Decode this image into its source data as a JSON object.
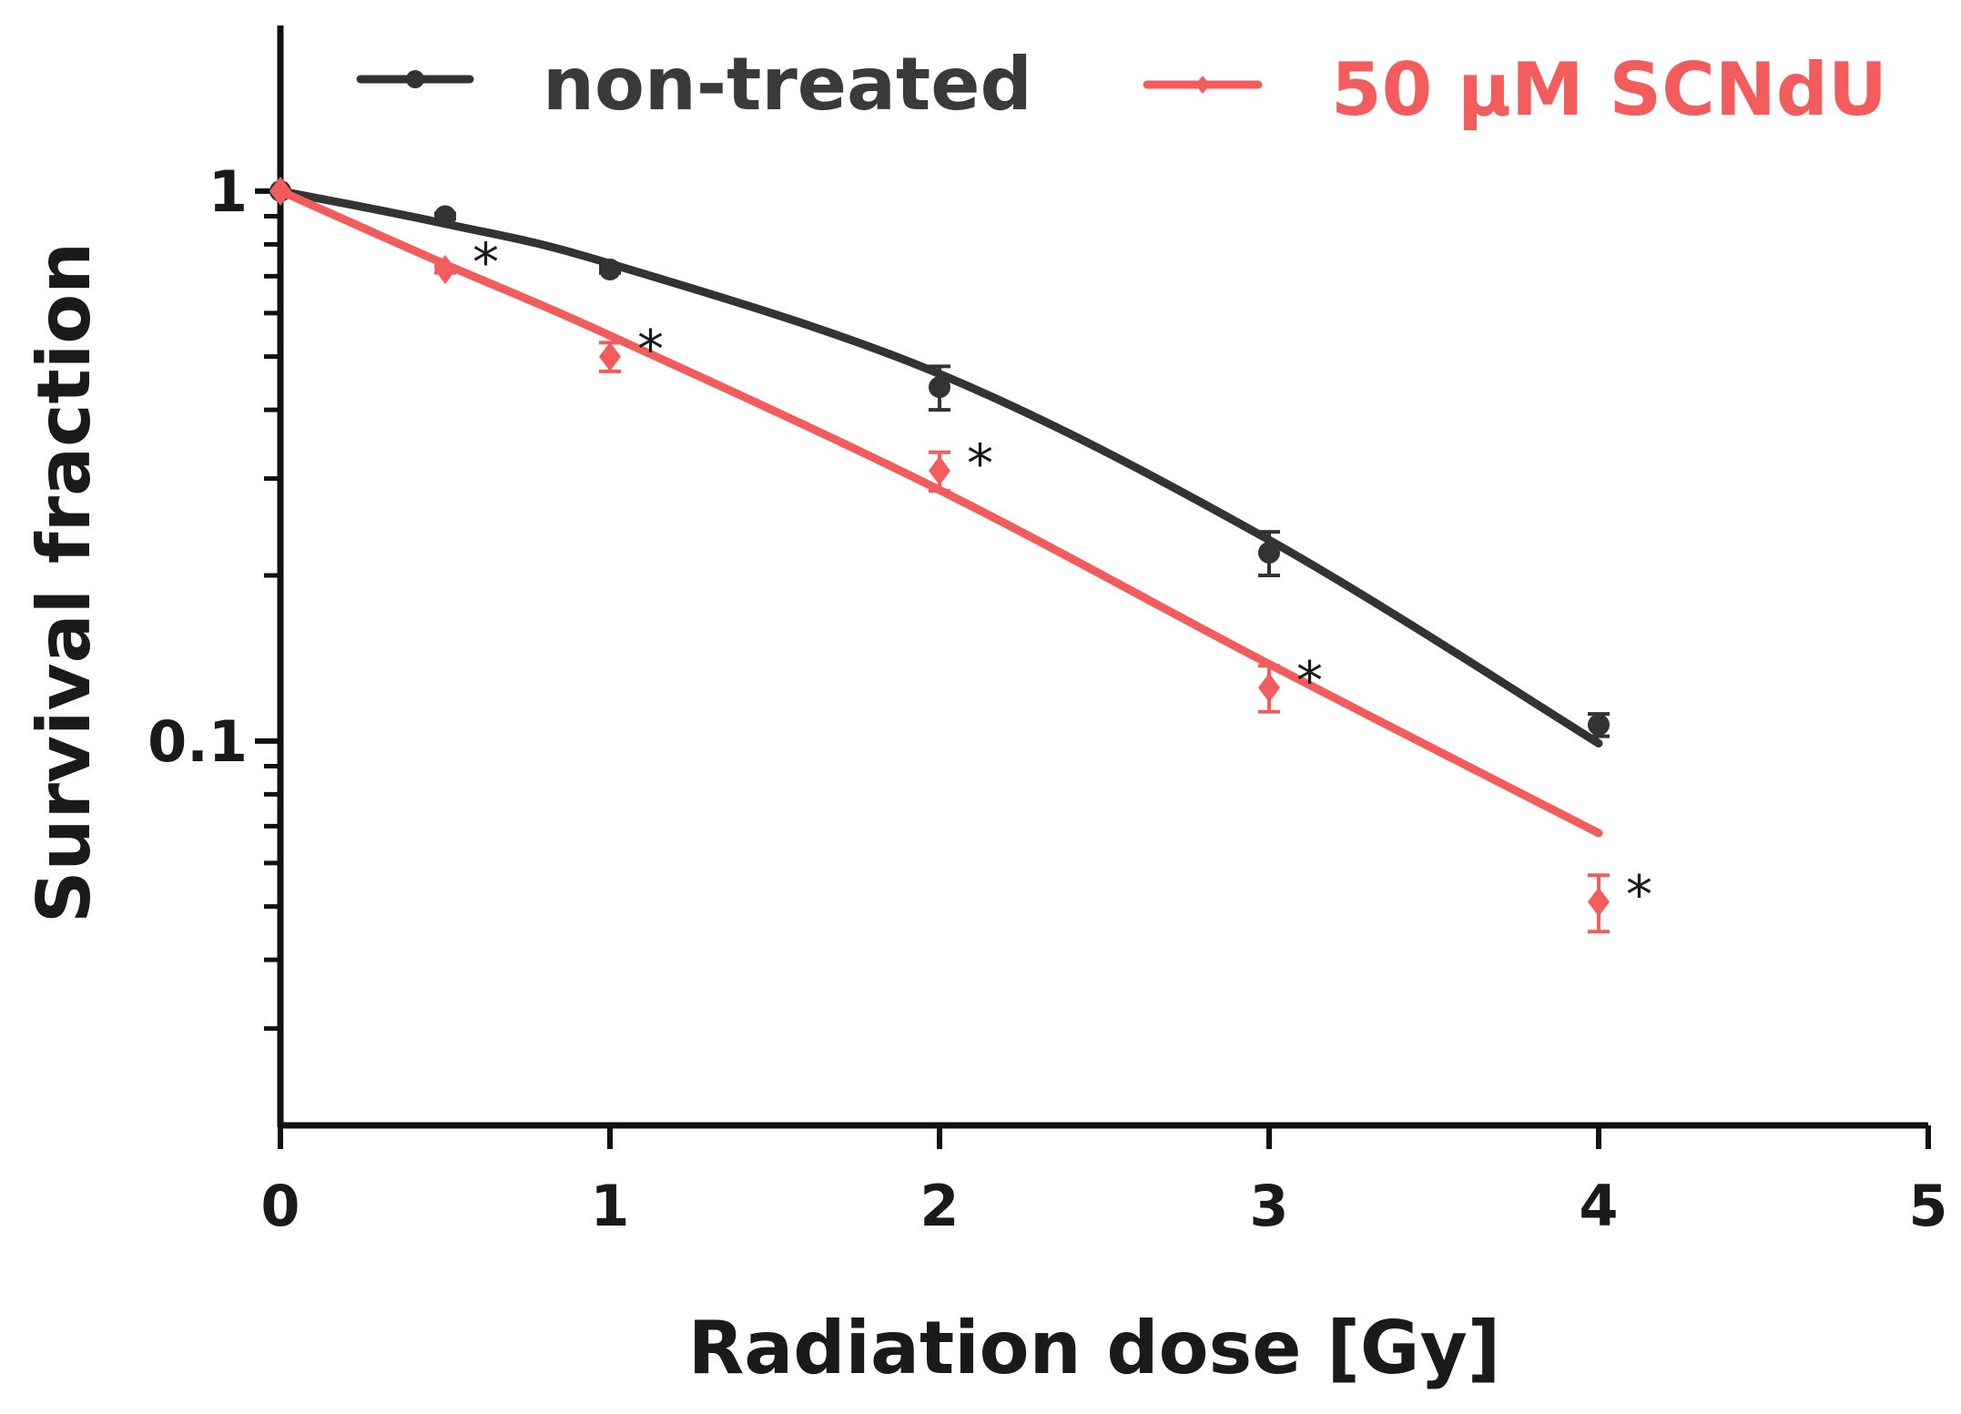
{
  "chart_data": {
    "type": "scatter",
    "xlabel": "Radiation dose [Gy]",
    "ylabel": "Survival fraction",
    "xlim": [
      0,
      5
    ],
    "ylim": [
      0.02,
      2
    ],
    "y_scale": "log",
    "x_ticks": [
      0,
      1,
      2,
      3,
      4,
      5
    ],
    "x_tick_labels": [
      "0",
      "1",
      "2",
      "3",
      "4",
      "5"
    ],
    "y_tick_labels": [
      {
        "value": 1,
        "label": "1"
      },
      {
        "value": 0.1,
        "label": "0.1"
      }
    ],
    "y_minor_ticks": [
      0.03,
      0.04,
      0.05,
      0.06,
      0.07,
      0.08,
      0.09,
      0.2,
      0.3,
      0.4,
      0.5,
      0.6,
      0.7,
      0.8,
      0.9
    ],
    "legend_position": "top",
    "grid": false,
    "series": [
      {
        "name": "non-treated",
        "color": "#333333",
        "marker": "circle",
        "x": [
          0,
          0.5,
          1,
          2,
          3,
          4
        ],
        "y": [
          1.0,
          0.9,
          0.72,
          0.44,
          0.22,
          0.107
        ],
        "err": [
          0,
          0.01,
          0.01,
          0.04,
          0.02,
          0.005
        ],
        "fit_y": [
          1.0,
          0.872,
          0.738,
          0.465,
          0.232,
          0.099
        ]
      },
      {
        "name": "50 µM SCNdU",
        "color": "#f25c5c",
        "marker": "diamond",
        "x": [
          0,
          0.5,
          1,
          2,
          3,
          4
        ],
        "y": [
          1.0,
          0.72,
          0.5,
          0.31,
          0.125,
          0.051
        ],
        "err": [
          0,
          0.01,
          0.03,
          0.025,
          0.012,
          0.006
        ],
        "fit_y": [
          1.0,
          0.736,
          0.546,
          0.286,
          0.138,
          0.068
        ],
        "significance_marks": [
          {
            "x": 0.5,
            "label": "*"
          },
          {
            "x": 1,
            "label": "*"
          },
          {
            "x": 2,
            "label": "*"
          },
          {
            "x": 3,
            "label": "*"
          },
          {
            "x": 4,
            "label": "*"
          }
        ]
      }
    ]
  }
}
